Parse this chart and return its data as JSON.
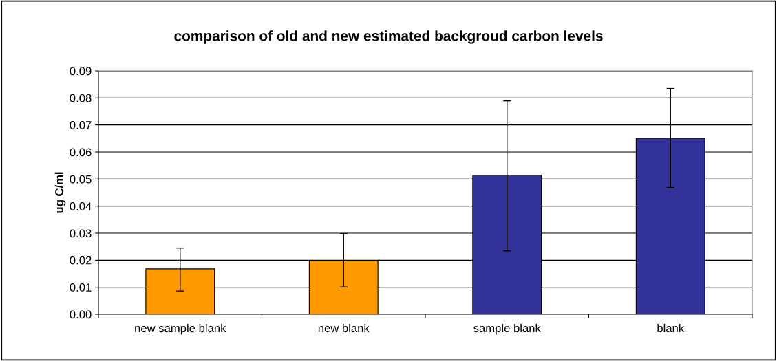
{
  "chart_data": {
    "type": "bar",
    "title": "comparison of old and new estimated backgroud carbon levels",
    "ylabel": "ug C/ml",
    "categories": [
      "new sample blank",
      "new blank",
      "sample blank",
      "blank"
    ],
    "values": [
      0.0168,
      0.0199,
      0.0515,
      0.0651
    ],
    "errors": [
      [
        0.0086,
        0.0245
      ],
      [
        0.0101,
        0.0298
      ],
      [
        0.0235,
        0.0789
      ],
      [
        0.0469,
        0.0835
      ]
    ],
    "colors": [
      "#ff9900",
      "#ff9900",
      "#333399",
      "#333399"
    ],
    "ylim": [
      0,
      0.09
    ],
    "yticks": [
      {
        "value": 0,
        "label": "0.00"
      },
      {
        "value": 0.01,
        "label": "0.01"
      },
      {
        "value": 0.02,
        "label": "0.02"
      },
      {
        "value": 0.03,
        "label": "0.03"
      },
      {
        "value": 0.04,
        "label": "0.04"
      },
      {
        "value": 0.05,
        "label": "0.05"
      },
      {
        "value": 0.06,
        "label": "0.06"
      },
      {
        "value": 0.07,
        "label": "0.07"
      },
      {
        "value": 0.08,
        "label": "0.08"
      },
      {
        "value": 0.09,
        "label": "0.09"
      }
    ],
    "grid": "y",
    "legend": false
  }
}
